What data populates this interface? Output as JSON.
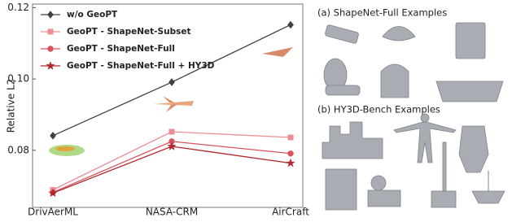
{
  "chart_data": {
    "type": "line",
    "ylabel": "Relative L2",
    "categories": [
      "DrivAerML",
      "NASA-CRM",
      "AirCraft"
    ],
    "ylim": [
      0.064,
      0.121
    ],
    "yticks": [
      0.08,
      {
        "value": 0.1,
        "label": "0.10"
      },
      0.12
    ],
    "series": [
      {
        "name": "w/o GeoPT",
        "color": "#404040",
        "marker": "diamond",
        "values": [
          0.0841,
          0.0991,
          0.1152
        ]
      },
      {
        "name": "GeoPT - ShapeNet-Subset",
        "color": "#ec8f95",
        "marker": "square",
        "values": [
          0.0689,
          0.0852,
          0.0836
        ]
      },
      {
        "name": "GeoPT - ShapeNet-Full",
        "color": "#d8545c",
        "marker": "circle",
        "values": [
          0.0682,
          0.0825,
          0.0791
        ]
      },
      {
        "name": "GeoPT - ShapeNet-Full + HY3D",
        "color": "#b0282e",
        "marker": "star",
        "values": [
          0.068,
          0.0811,
          0.0764
        ]
      }
    ]
  },
  "panels": {
    "a": "(a) ShapeNet-Full Examples",
    "b": "(b) HY3D-Bench Examples"
  }
}
